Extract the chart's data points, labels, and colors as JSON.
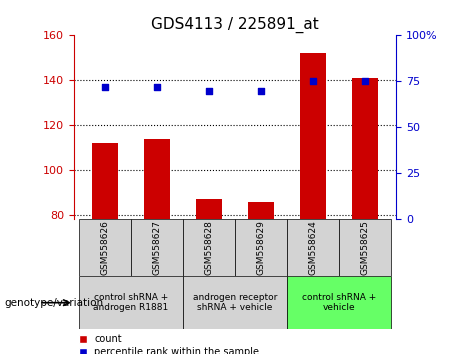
{
  "title": "GDS4113 / 225891_at",
  "samples": [
    "GSM558626",
    "GSM558627",
    "GSM558628",
    "GSM558629",
    "GSM558624",
    "GSM558625"
  ],
  "counts": [
    112,
    114,
    87,
    86,
    152,
    141
  ],
  "percentile_ranks": [
    72,
    72,
    70,
    70,
    75,
    75
  ],
  "ylim_left": [
    78,
    160
  ],
  "ylim_right": [
    0,
    100
  ],
  "yticks_left": [
    80,
    100,
    120,
    140,
    160
  ],
  "yticks_right": [
    0,
    25,
    50,
    75,
    100
  ],
  "yticklabels_right": [
    "0",
    "25",
    "50",
    "75",
    "100%"
  ],
  "bar_color": "#cc0000",
  "dot_color": "#0000cc",
  "grid_color": "black",
  "groups": [
    {
      "label": "control shRNA +\nandrogen R1881",
      "start": 0,
      "end": 2,
      "color": "#d3d3d3"
    },
    {
      "label": "androgen receptor\nshRNA + vehicle",
      "start": 2,
      "end": 4,
      "color": "#d3d3d3"
    },
    {
      "label": "control shRNA +\nvehicle",
      "start": 4,
      "end": 6,
      "color": "#66ff66"
    }
  ],
  "xlabel_left": "genotype/variation",
  "legend_count": "count",
  "legend_percentile": "percentile rank within the sample",
  "title_fontsize": 11,
  "tick_fontsize": 8,
  "label_fontsize": 8
}
